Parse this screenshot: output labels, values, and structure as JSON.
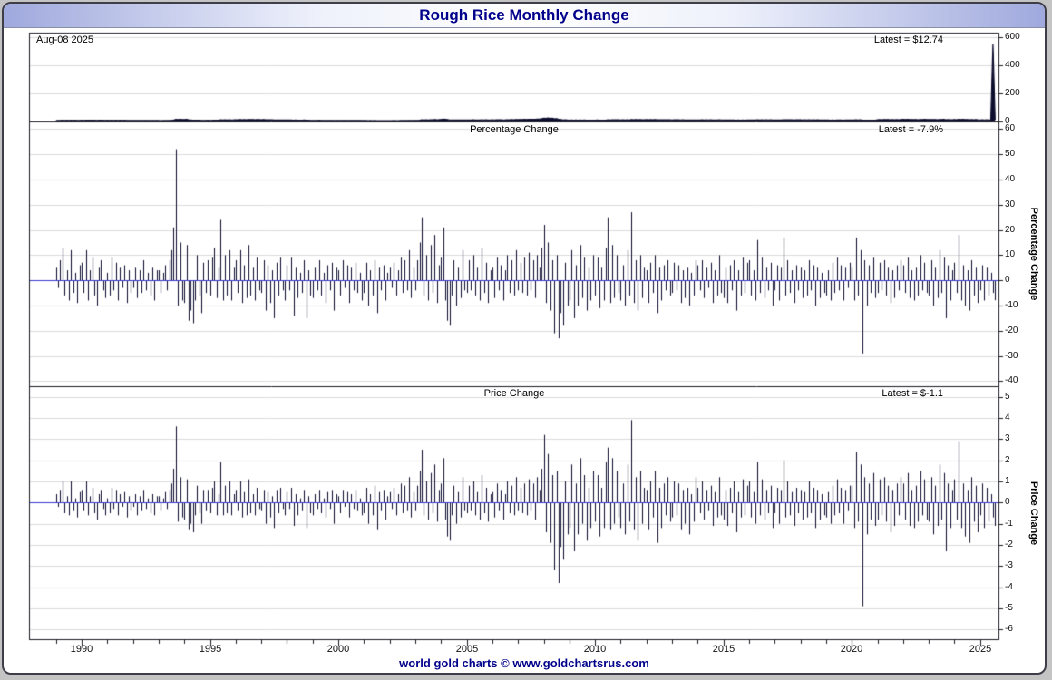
{
  "header": {
    "title": "Rough Rice Monthly Change"
  },
  "annotations": {
    "date_label": "Aug-08 2025",
    "price_latest": "Latest = $12.74",
    "percentage_latest": "Latest = -7.9%",
    "price_change_latest": "Latest = $-1.1"
  },
  "footer": {
    "credit": "world gold charts © www.goldchartsrus.com"
  },
  "x_axis": {
    "frequency": "monthly",
    "start_year": 1989,
    "start_month": 1,
    "end_label": "Aug 2025",
    "range_years": [
      1987.95,
      2025.75
    ],
    "major_tick_years": [
      1990,
      1995,
      2000,
      2005,
      2010,
      2015,
      2020,
      2025
    ]
  },
  "chart_data": [
    {
      "name": "price",
      "type": "line",
      "title": "",
      "latest_label": "Latest = $12.74",
      "latest_value": 12.74,
      "ylim": [
        0,
        630
      ],
      "yticks": [
        600,
        400,
        200,
        0
      ],
      "values": [
        7.1,
        6.9,
        7.4,
        8.4,
        7.9,
        8.2,
        7.5,
        8.4,
        8.0,
        8.2,
        7.5,
        7.9,
        8.5,
        8.1,
        9.0,
        8.3,
        8.6,
        9.4,
        8.8,
        7.9,
        8.3,
        9.0,
        8.6,
        8.0,
        8.2,
        7.7,
        8.4,
        8.1,
        8.7,
        8.0,
        8.4,
        8.1,
        8.6,
        7.8,
        8.1,
        7.7,
        7.5,
        7.9,
        7.3,
        7.6,
        7.2,
        7.8,
        7.5,
        7.7,
        7.2,
        7.6,
        7.0,
        7.3,
        6.8,
        6.5,
        6.7,
        7.1,
        6.8,
        7.3,
        8.2,
        9.9,
        15.1,
        13.6,
        15.6,
        14.4,
        13.1,
        14.9,
        12.5,
        11.0,
        9.1,
        8.4,
        9.2,
        8.7,
        7.6,
        8.1,
        7.7,
        8.3,
        7.8,
        8.5,
        9.6,
        8.9,
        9.3,
        11.5,
        10.6,
        11.7,
        11.0,
        12.3,
        11.3,
        11.9,
        12.9,
        12.3,
        13.8,
        12.6,
        13.4,
        12.5,
        14.3,
        13.4,
        14.1,
        13.0,
        14.2,
        13.6,
        12.9,
        13.9,
        12.2,
        12.9,
        11.7,
        12.2,
        10.4,
        11.1,
        10.4,
        11.3,
        10.8,
        9.9,
        10.5,
        10.1,
        11.0,
        9.5,
        10.0,
        9.3,
        9.6,
        9.1,
        9.8,
        8.3,
        8.6,
        8.1,
        7.5,
        7.9,
        7.6,
        8.2,
        7.7,
        7.9,
        7.2,
        7.6,
        7.3,
        7.8,
        6.9,
        7.2,
        7.5,
        7.1,
        7.7,
        7.5,
        7.9,
        7.2,
        7.6,
        7.3,
        7.8,
        7.4,
        7.6,
        7.0,
        6.7,
        7.2,
        6.5,
        6.8,
        6.4,
        6.9,
        6.0,
        6.3,
        6.1,
        6.4,
        5.9,
        6.1,
        6.4,
        6.2,
        6.6,
        6.2,
        6.5,
        7.1,
        6.7,
        7.2,
        6.9,
        7.8,
        7.2,
        7.6,
        7.3,
        7.9,
        9.1,
        11.4,
        10.7,
        11.8,
        10.8,
        12.3,
        11.7,
        13.8,
        12.6,
        13.3,
        14.5,
        17.5,
        16.1,
        13.5,
        11.1,
        10.4,
        11.2,
        10.1,
        10.6,
        9.9,
        11.1,
        10.6,
        10.1,
        10.9,
        10.5,
        11.5,
        10.8,
        11.3,
        10.4,
        11.8,
        11.2,
        12.0,
        10.9,
        11.3,
        11.9,
        11.1,
        12.1,
        11.6,
        12.3,
        11.3,
        11.8,
        13.0,
        12.3,
        13.3,
        12.5,
        14.0,
        13.4,
        14.4,
        13.7,
        14.9,
        14.0,
        15.5,
        14.9,
        16.1,
        15.0,
        16.5,
        17.3,
        19.5,
        23.8,
        21.7,
        25.0,
        22.0,
        23.8,
        18.8,
        20.7,
        15.9,
        13.8,
        11.1,
        11.9,
        10.7,
        9.8,
        11.0,
        9.4,
        9.9,
        8.9,
        10.2,
        9.5,
        10.3,
        9.1,
        9.5,
        8.8,
        9.6,
        9.0,
        9.8,
        8.7,
        9.2,
        8.4,
        9.5,
        11.9,
        10.8,
        12.3,
        11.5,
        12.6,
        12.0,
        11.0,
        11.7,
        10.5,
        11.8,
        11.1,
        14.1,
        12.8,
        13.8,
        12.1,
        13.3,
        12.4,
        13.0,
        13.5,
        12.3,
        13.2,
        12.5,
        13.8,
        12.0,
        12.6,
        11.6,
        12.3,
        11.8,
        12.7,
        12.0,
        11.4,
        12.2,
        11.7,
        12.4,
        11.3,
        11.7,
        10.9,
        11.4,
        10.3,
        10.6,
        10.0,
        10.8,
        11.4,
        11.0,
        11.9,
        11.0,
        11.6,
        11.2,
        12.0,
        10.9,
        11.4,
        10.7,
        11.8,
        11.2,
        10.4,
        10.9,
        9.9,
        10.5,
        10.1,
        10.9,
        9.6,
        10.0,
        9.4,
        10.2,
        9.7,
        10.4,
        11.2,
        10.5,
        10.9,
        10.0,
        11.6,
        11.0,
        12.0,
        11.2,
        11.7,
        11.2,
        12.0,
        10.8,
        10.4,
        11.0,
        10.1,
        10.6,
        12.4,
        11.7,
        12.6,
        12.0,
        12.5,
        11.4,
        12.1,
        11.5,
        12.1,
        11.2,
        11.8,
        11.1,
        12.0,
        11.4,
        12.1,
        10.9,
        11.5,
        10.7,
        11.1,
        10.5,
        9.9,
        10.3,
        9.5,
        10.2,
        9.7,
        10.5,
        10.1,
        10.7,
        9.8,
        10.3,
        9.9,
        10.7,
        11.2,
        9.9,
        12.3,
        11.2,
        12.6,
        8.9,
        9.7,
        8.7,
        9.2,
        8.5,
        9.7,
        9.0,
        12.6,
        13.5,
        13.0,
        14.0,
        13.2,
        14.0,
        12.7,
        13.2,
        12.3,
        13.2,
        12.7,
        13.7,
        14.9,
        13.7,
        15.0,
        13.8,
        14.4,
        13.2,
        13.9,
        12.9,
        14.2,
        13.5,
        15.0,
        14.2,
        13.5,
        14.6,
        13.1,
        13.8,
        12.9,
        14.4,
        13.7,
        15.0,
        12.7,
        13.5,
        12.3,
        12.8,
        13.7,
        13.0,
        15.3,
        14.1,
        15.0,
        13.5,
        14.0,
        12.3,
        13.3,
        12.5,
        13.1,
        11.9,
        11.4,
        12.1,
        11.1,
        11.7,
        11.0,
        11.3,
        550,
        12.74
      ]
    },
    {
      "name": "percentage-change",
      "type": "bar",
      "title": "Percentage Change",
      "ylabel": "Percentage Change",
      "latest_label": "Latest = -7.9%",
      "latest_value": -7.9,
      "ylim": [
        -42,
        63
      ],
      "yticks": [
        60,
        50,
        40,
        30,
        20,
        10,
        0,
        -10,
        -20,
        -30,
        -40
      ],
      "values": [
        5,
        -3,
        8,
        13,
        -6,
        4,
        -8,
        12,
        -5,
        3,
        -9,
        6,
        7,
        -5,
        12,
        -8,
        4,
        9,
        -6,
        -10,
        5,
        8,
        -4,
        -7,
        3,
        -6,
        9,
        -4,
        7,
        -8,
        5,
        -3,
        6,
        -9,
        4,
        -5,
        -3,
        5,
        -7,
        4,
        -5,
        8,
        -4,
        3,
        -6,
        5,
        -8,
        4,
        4,
        -5,
        3,
        6,
        -4,
        8,
        12,
        21,
        52,
        -10,
        15,
        -8,
        -9,
        14,
        -16,
        -12,
        -17,
        -8,
        10,
        -6,
        -13,
        7,
        -5,
        8,
        -6,
        9,
        13,
        -7,
        5,
        24,
        -8,
        10,
        -6,
        12,
        -8,
        5,
        8,
        -5,
        12,
        -9,
        6,
        -7,
        14,
        -6,
        5,
        -8,
        9,
        -4,
        -5,
        8,
        -12,
        6,
        -9,
        4,
        -15,
        7,
        -6,
        9,
        -4,
        -8,
        6,
        -4,
        9,
        -14,
        5,
        -7,
        3,
        -5,
        8,
        -15,
        4,
        -6,
        -7,
        5,
        -4,
        8,
        -6,
        3,
        -9,
        6,
        -4,
        7,
        -12,
        5,
        4,
        -6,
        8,
        -3,
        6,
        -9,
        5,
        -4,
        7,
        -5,
        3,
        -8,
        -5,
        7,
        -10,
        4,
        -6,
        8,
        -13,
        5,
        -4,
        6,
        -8,
        3,
        5,
        -3,
        7,
        -6,
        4,
        9,
        -5,
        8,
        -4,
        12,
        -7,
        5,
        -4,
        8,
        15,
        25,
        -6,
        10,
        -8,
        14,
        -5,
        18,
        -9,
        6,
        9,
        21,
        -8,
        -16,
        -18,
        -6,
        8,
        -10,
        5,
        -7,
        12,
        -4,
        -5,
        8,
        -4,
        10,
        -6,
        5,
        -8,
        13,
        -5,
        7,
        -9,
        4,
        5,
        -7,
        9,
        -4,
        6,
        -8,
        4,
        10,
        -5,
        8,
        -6,
        12,
        -4,
        7,
        -5,
        9,
        -6,
        11,
        -4,
        8,
        -7,
        10,
        5,
        13,
        22,
        -9,
        15,
        -12,
        8,
        -21,
        10,
        -23,
        -13,
        -18,
        7,
        -10,
        -8,
        12,
        -15,
        6,
        -10,
        14,
        -7,
        9,
        -12,
        5,
        -8,
        10,
        -6,
        9,
        -11,
        5,
        -8,
        13,
        25,
        -9,
        14,
        -7,
        10,
        -5,
        -8,
        6,
        -10,
        12,
        -6,
        27,
        -9,
        8,
        -12,
        10,
        -7,
        5,
        4,
        -9,
        7,
        -5,
        10,
        -13,
        5,
        -8,
        6,
        -4,
        8,
        -6,
        -5,
        7,
        -4,
        6,
        -9,
        4,
        -7,
        5,
        -10,
        3,
        -6,
        8,
        6,
        -4,
        8,
        -7,
        5,
        -3,
        7,
        -9,
        4,
        -6,
        10,
        -5,
        -7,
        5,
        -9,
        6,
        -4,
        8,
        -12,
        4,
        -6,
        9,
        -5,
        7,
        8,
        -6,
        4,
        -8,
        16,
        -5,
        9,
        -7,
        5,
        -4,
        7,
        -10,
        -4,
        6,
        -8,
        5,
        17,
        -6,
        8,
        -5,
        4,
        -9,
        6,
        -4,
        5,
        -7,
        4,
        -6,
        8,
        -4,
        6,
        -10,
        5,
        -7,
        3,
        -5,
        -6,
        4,
        -8,
        7,
        -5,
        9,
        -4,
        6,
        -8,
        5,
        -3,
        7,
        5,
        -8,
        17,
        -6,
        12,
        -29,
        8,
        -10,
        6,
        -5,
        9,
        -7,
        -5,
        7,
        -4,
        8,
        -6,
        5,
        -9,
        4,
        -7,
        6,
        -4,
        8,
        6,
        -5,
        9,
        -7,
        4,
        -8,
        5,
        -6,
        10,
        -4,
        7,
        -5,
        -6,
        8,
        -10,
        5,
        -7,
        12,
        -5,
        9,
        -15,
        6,
        -8,
        4,
        7,
        -5,
        18,
        -8,
        6,
        -10,
        4,
        -12,
        8,
        -6,
        5,
        -9,
        -4,
        6,
        -8,
        5,
        -6,
        3,
        -5,
        -7.9
      ]
    },
    {
      "name": "price-change",
      "type": "bar",
      "title": "Price Change",
      "ylabel": "Price Change",
      "latest_label": "Latest = $-1.1",
      "latest_value": -1.1,
      "ylim": [
        -6.5,
        5.5
      ],
      "yticks": [
        5,
        4,
        3,
        2,
        1,
        0,
        -1,
        -2,
        -3,
        -4,
        -5,
        -6
      ],
      "values": [
        0.4,
        -0.2,
        0.6,
        1.0,
        -0.5,
        0.3,
        -0.6,
        1.0,
        -0.4,
        0.2,
        -0.7,
        0.5,
        0.6,
        -0.4,
        1.0,
        -0.6,
        0.3,
        0.7,
        -0.5,
        -0.8,
        0.4,
        0.6,
        -0.3,
        -0.6,
        0.2,
        -0.5,
        0.7,
        -0.3,
        0.6,
        -0.6,
        0.4,
        -0.2,
        0.5,
        -0.7,
        0.3,
        -0.4,
        -0.2,
        0.4,
        -0.6,
        0.3,
        -0.4,
        0.6,
        -0.3,
        0.2,
        -0.5,
        0.4,
        -0.6,
        0.3,
        0.3,
        -0.4,
        0.2,
        0.5,
        -0.3,
        0.6,
        0.9,
        1.6,
        3.6,
        -0.9,
        1.2,
        -0.7,
        -0.8,
        1.1,
        -1.3,
        -1.0,
        -1.4,
        -0.6,
        0.8,
        -0.5,
        -1.0,
        0.6,
        -0.4,
        0.6,
        -0.5,
        0.7,
        1.0,
        -0.6,
        0.4,
        1.9,
        -0.6,
        0.8,
        -0.5,
        1.0,
        -0.6,
        0.4,
        0.6,
        -0.4,
        1.0,
        -0.7,
        0.5,
        -0.6,
        1.1,
        -0.5,
        0.4,
        -0.6,
        0.7,
        -0.3,
        -0.4,
        0.6,
        -1.0,
        0.5,
        -0.7,
        0.3,
        -1.2,
        0.6,
        -0.5,
        0.7,
        -0.3,
        -0.6,
        0.5,
        -0.3,
        0.7,
        -1.1,
        0.4,
        -0.6,
        0.2,
        -0.4,
        0.6,
        -1.2,
        0.3,
        -0.5,
        -0.6,
        0.4,
        -0.3,
        0.6,
        -0.5,
        0.2,
        -0.7,
        0.5,
        -0.3,
        0.6,
        -1.0,
        0.4,
        0.3,
        -0.5,
        0.6,
        -0.2,
        0.5,
        -0.7,
        0.4,
        -0.3,
        0.6,
        -0.4,
        0.2,
        -0.6,
        -0.5,
        0.7,
        -1.0,
        0.4,
        -0.6,
        0.8,
        -1.3,
        0.5,
        -0.4,
        0.6,
        -0.8,
        0.3,
        0.5,
        -0.3,
        0.7,
        -0.6,
        0.4,
        0.9,
        -0.5,
        0.8,
        -0.4,
        1.2,
        -0.7,
        0.5,
        -0.4,
        0.8,
        1.5,
        2.5,
        -0.6,
        1.0,
        -0.8,
        1.4,
        -0.5,
        1.8,
        -0.9,
        0.6,
        0.9,
        2.1,
        -0.8,
        -1.6,
        -1.8,
        -0.6,
        0.8,
        -1.0,
        0.5,
        -0.7,
        1.2,
        -0.4,
        -0.5,
        0.8,
        -0.4,
        1.0,
        -0.6,
        0.5,
        -0.8,
        1.3,
        -0.5,
        0.7,
        -0.9,
        0.4,
        0.5,
        -0.7,
        0.9,
        -0.4,
        0.6,
        -0.8,
        0.4,
        1.0,
        -0.5,
        0.8,
        -0.6,
        1.2,
        -0.4,
        0.7,
        -0.5,
        0.9,
        -0.6,
        1.1,
        -0.4,
        0.9,
        -0.8,
        1.2,
        0.6,
        1.6,
        3.2,
        -1.4,
        2.3,
        -1.9,
        1.3,
        -3.2,
        1.5,
        -3.8,
        -2.1,
        -2.7,
        1.0,
        -1.5,
        -1.2,
        1.8,
        -2.3,
        0.9,
        -1.5,
        2.1,
        -1.0,
        1.3,
        -1.8,
        0.7,
        -1.2,
        1.5,
        -0.9,
        1.3,
        -1.6,
        0.7,
        -1.2,
        1.9,
        2.6,
        -1.3,
        2.1,
        -1.0,
        1.5,
        -0.7,
        -1.2,
        0.9,
        -1.5,
        1.8,
        -0.9,
        3.9,
        -1.3,
        1.2,
        -1.8,
        1.5,
        -1.0,
        0.7,
        0.6,
        -1.3,
        1.0,
        -0.7,
        1.5,
        -1.9,
        0.7,
        -1.2,
        0.9,
        -0.6,
        1.2,
        -0.9,
        -0.7,
        1.0,
        -0.6,
        0.9,
        -1.3,
        0.6,
        -1.0,
        0.7,
        -1.5,
        0.4,
        -0.9,
        1.2,
        0.7,
        -0.5,
        1.0,
        -0.8,
        0.6,
        -0.4,
        0.8,
        -1.1,
        0.5,
        -0.7,
        1.2,
        -0.6,
        -0.8,
        0.6,
        -1.1,
        0.7,
        -0.5,
        1.0,
        -1.4,
        0.5,
        -0.7,
        1.1,
        -0.6,
        0.8,
        1.0,
        -0.7,
        0.5,
        -1.0,
        1.9,
        -0.6,
        1.1,
        -0.8,
        0.6,
        -0.5,
        0.8,
        -1.2,
        -0.5,
        0.7,
        -1.0,
        0.6,
        2.0,
        -0.7,
        1.0,
        -0.6,
        0.5,
        -1.1,
        0.7,
        -0.5,
        0.6,
        -0.8,
        0.5,
        -0.7,
        1.0,
        -0.5,
        0.7,
        -1.2,
        0.6,
        -0.8,
        0.4,
        -0.6,
        -0.7,
        0.5,
        -1.0,
        0.8,
        -0.6,
        1.1,
        -0.5,
        0.7,
        -1.0,
        0.6,
        -0.4,
        0.8,
        0.8,
        -1.2,
        2.4,
        -0.9,
        1.8,
        -4.9,
        1.2,
        -1.5,
        0.9,
        -0.8,
        1.4,
        -1.1,
        -0.8,
        1.1,
        -0.6,
        1.2,
        -0.9,
        0.8,
        -1.4,
        0.6,
        -1.1,
        0.9,
        -0.6,
        1.2,
        0.9,
        -0.8,
        1.4,
        -1.1,
        0.6,
        -1.2,
        0.8,
        -0.9,
        1.5,
        -0.6,
        1.1,
        -0.8,
        -0.9,
        1.2,
        -1.5,
        0.8,
        -1.1,
        1.8,
        -0.8,
        1.4,
        -2.3,
        0.9,
        -1.2,
        0.6,
        1.1,
        -0.8,
        2.9,
        -1.2,
        0.9,
        -1.6,
        0.6,
        -1.9,
        1.2,
        -0.9,
        0.8,
        -1.4,
        -0.6,
        0.9,
        -1.2,
        0.7,
        -0.9,
        0.4,
        -0.7,
        -1.1
      ]
    }
  ]
}
